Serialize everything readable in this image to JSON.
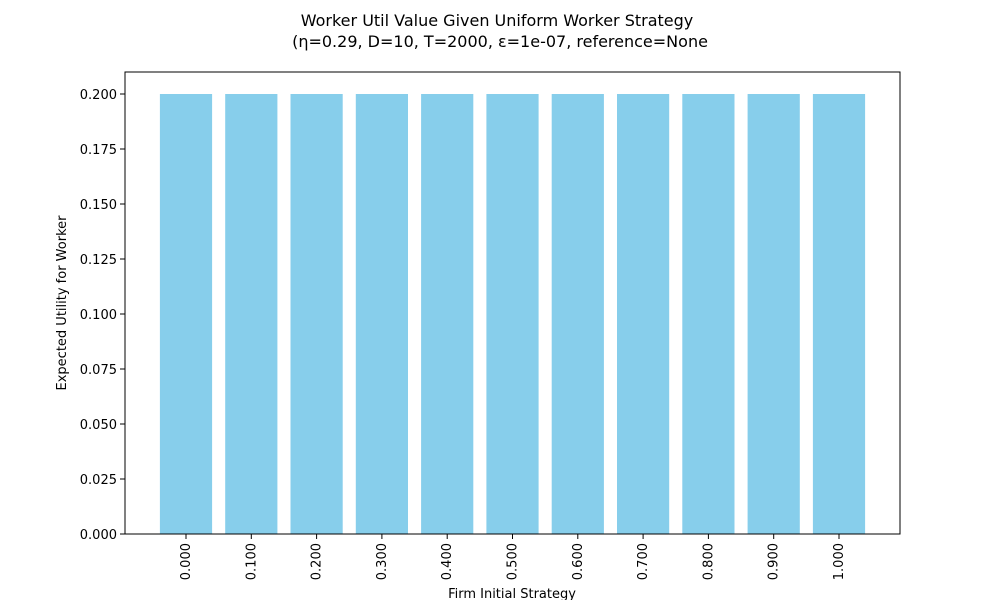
{
  "chart_data": {
    "type": "bar",
    "title_line1": "Worker Util Value Given Uniform Worker Strategy",
    "title_line2": "(η=0.29, D=10, T=2000, ε=1e-07, reference=None",
    "xlabel": "Firm Initial Strategy",
    "ylabel": "Expected Utility for Worker",
    "categories": [
      "0.000",
      "0.100",
      "0.200",
      "0.300",
      "0.400",
      "0.500",
      "0.600",
      "0.700",
      "0.800",
      "0.900",
      "1.000"
    ],
    "values": [
      0.2,
      0.2,
      0.2,
      0.2,
      0.2,
      0.2,
      0.2,
      0.2,
      0.2,
      0.2,
      0.2
    ],
    "ylim": [
      0,
      0.21
    ],
    "yticks": [
      "0.000",
      "0.025",
      "0.050",
      "0.075",
      "0.100",
      "0.125",
      "0.150",
      "0.175",
      "0.200"
    ],
    "bar_color": "#87ceeb",
    "grid": false
  }
}
